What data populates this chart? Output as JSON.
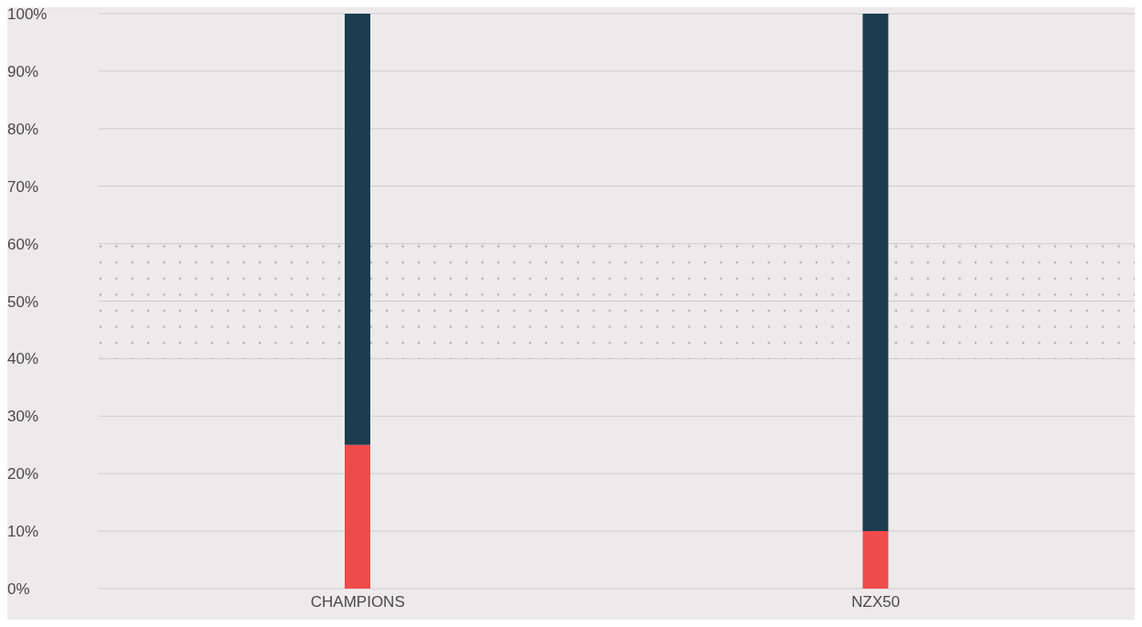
{
  "chart_data": {
    "type": "bar",
    "stacked": true,
    "categories": [
      "CHAMPIONS",
      "NZX50"
    ],
    "series": [
      {
        "color": "#ef4b4b",
        "values": [
          25,
          10
        ]
      },
      {
        "color": "#1b3d4f",
        "values": [
          75,
          90
        ]
      }
    ],
    "ylim": [
      0,
      100
    ],
    "yticks": [
      {
        "value": 0,
        "label": "0%"
      },
      {
        "value": 10,
        "label": "10%"
      },
      {
        "value": 20,
        "label": "20%"
      },
      {
        "value": 30,
        "label": "30%"
      },
      {
        "value": 40,
        "label": "40%"
      },
      {
        "value": 50,
        "label": "50%"
      },
      {
        "value": 60,
        "label": "60%"
      },
      {
        "value": 70,
        "label": "70%"
      },
      {
        "value": 80,
        "label": "80%"
      },
      {
        "value": 90,
        "label": "90%"
      },
      {
        "value": 100,
        "label": "100%"
      }
    ],
    "bands": [
      {
        "axis": "y",
        "from": 40,
        "to": 60,
        "color": "#aaaaaa"
      }
    ],
    "grid": "y",
    "legend": false
  }
}
